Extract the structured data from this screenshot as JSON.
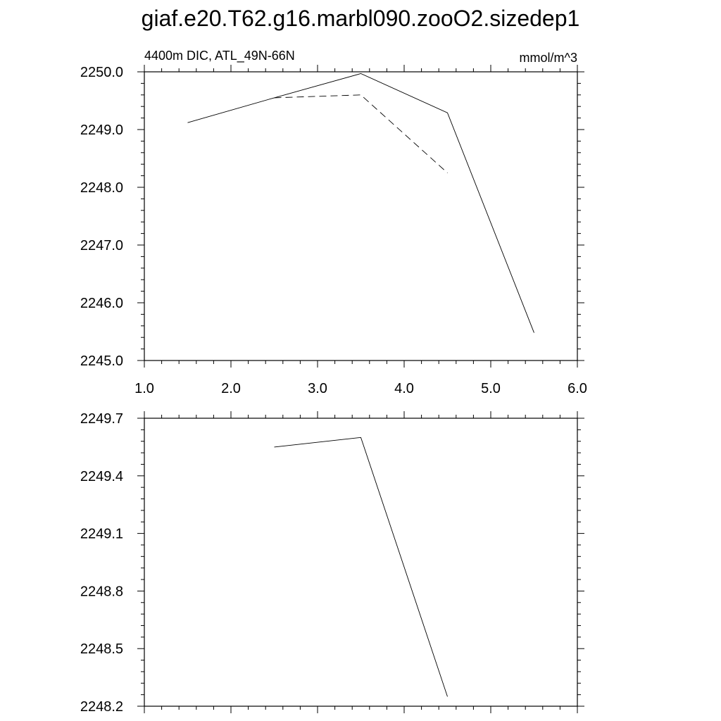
{
  "title": "giaf.e20.T62.g16.marbl090.zooO2.sizedep1",
  "chart_data": [
    {
      "type": "line",
      "left_label": "4400m DIC, ATL_49N-66N",
      "right_label": "mmol/m^3",
      "xlim": [
        1.0,
        6.0
      ],
      "ylim": [
        2245.0,
        2250.0
      ],
      "xticks": [
        "1.0",
        "2.0",
        "3.0",
        "4.0",
        "5.0",
        "6.0"
      ],
      "yticks": [
        "2245.0",
        "2246.0",
        "2247.0",
        "2248.0",
        "2249.0",
        "2250.0"
      ],
      "series": [
        {
          "style": "solid",
          "x": [
            1.5,
            2.5,
            3.5,
            4.5,
            5.5
          ],
          "y": [
            2249.12,
            2249.55,
            2249.97,
            2249.29,
            2245.48
          ]
        },
        {
          "style": "dashed",
          "x": [
            2.5,
            3.5,
            4.5
          ],
          "y": [
            2249.55,
            2249.6,
            2248.25
          ]
        }
      ],
      "grid": false
    },
    {
      "type": "line",
      "xlim": [
        1.0,
        6.0
      ],
      "ylim": [
        2248.2,
        2249.7
      ],
      "yticks": [
        "2248.2",
        "2248.5",
        "2248.8",
        "2249.1",
        "2249.4",
        "2249.7"
      ],
      "series": [
        {
          "style": "solid",
          "x": [
            2.5,
            3.5,
            4.5
          ],
          "y": [
            2249.55,
            2249.6,
            2248.25
          ]
        }
      ],
      "grid": false
    }
  ]
}
